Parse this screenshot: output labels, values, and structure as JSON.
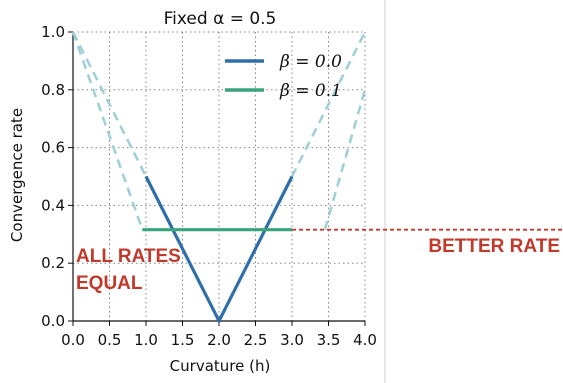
{
  "chart_data": {
    "type": "line",
    "title": "Fixed α = 0.5",
    "xlabel": "Curvature (h)",
    "ylabel": "Convergence rate",
    "xlim": [
      0.0,
      4.0
    ],
    "ylim": [
      0.0,
      1.0
    ],
    "xticks": [
      "0.0",
      "0.5",
      "1.0",
      "1.5",
      "2.0",
      "2.5",
      "3.0",
      "3.5",
      "4.0"
    ],
    "yticks": [
      "0.0",
      "0.2",
      "0.4",
      "0.6",
      "0.8",
      "1.0"
    ],
    "grid": true,
    "legend_position": "top-right",
    "series": [
      {
        "name": "β = 0.0",
        "color": "#2e6faa",
        "solid": {
          "x": [
            1.0,
            2.0,
            3.0
          ],
          "y": [
            0.5,
            0.0,
            0.5
          ]
        },
        "dashed_color": "#9fcfd6",
        "dashed": [
          {
            "x": [
              0.0,
              1.0
            ],
            "y": [
              1.0,
              0.5
            ]
          },
          {
            "x": [
              3.0,
              4.0
            ],
            "y": [
              0.5,
              1.0
            ]
          }
        ]
      },
      {
        "name": "β = 0.1",
        "color": "#3aa37a",
        "solid": {
          "x": [
            0.95,
            3.0
          ],
          "y": [
            0.316,
            0.316
          ]
        },
        "dashed_color": "#9fcfd6",
        "dashed": [
          {
            "x": [
              0.0,
              0.95
            ],
            "y": [
              1.0,
              0.316
            ]
          },
          {
            "x": [
              3.45,
              4.0
            ],
            "y": [
              0.316,
              0.8
            ]
          }
        ]
      }
    ],
    "reference_line": {
      "y": 0.316,
      "x_from": 3.0,
      "color": "#c0392b"
    },
    "annotations": [
      {
        "text": "ALL RATES",
        "color": "#c0392b"
      },
      {
        "text": "EQUAL",
        "color": "#c0392b"
      },
      {
        "text": "BETTER RATE",
        "color": "#c0392b"
      }
    ]
  }
}
